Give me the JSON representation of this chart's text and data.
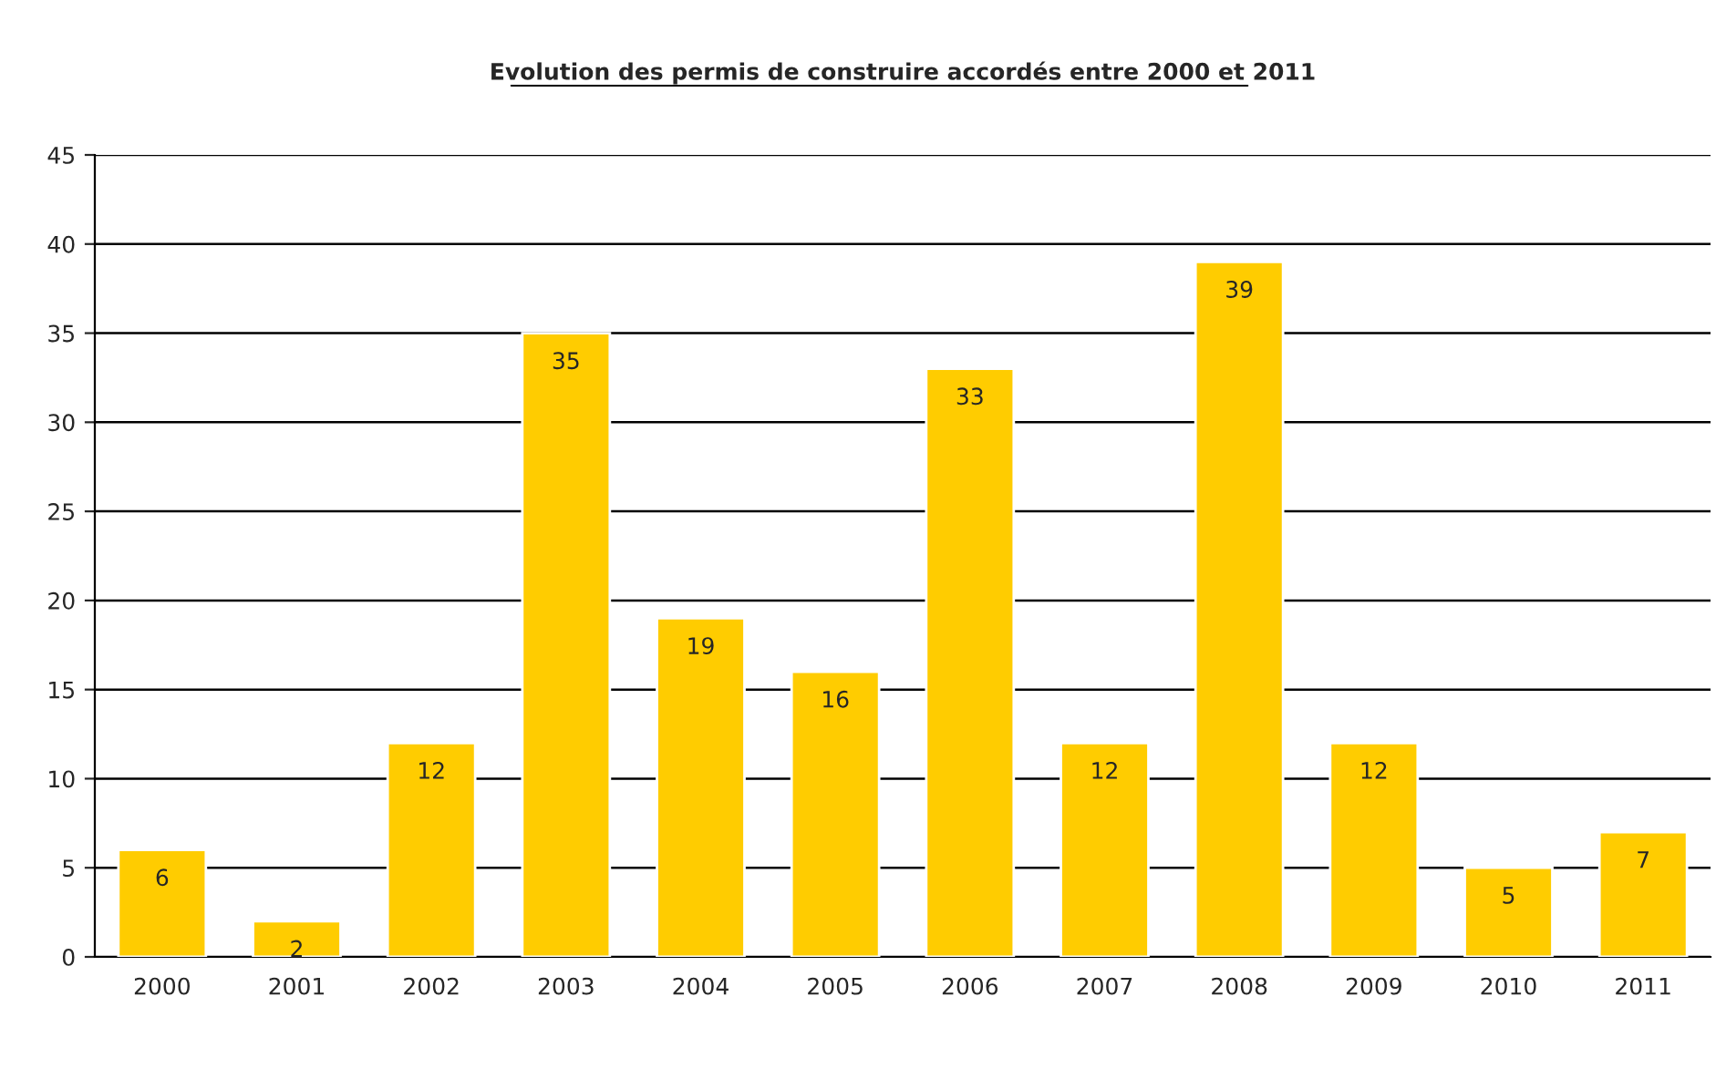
{
  "chart_data": {
    "type": "bar",
    "title": "Evolution des permis de construire accordés entre 2000 et 2011",
    "categories": [
      "2000",
      "2001",
      "2002",
      "2003",
      "2004",
      "2005",
      "2006",
      "2007",
      "2008",
      "2009",
      "2010",
      "2011"
    ],
    "values": [
      6,
      2,
      12,
      35,
      19,
      16,
      33,
      12,
      39,
      12,
      5,
      7
    ],
    "color": "#ffcc00",
    "ylim": [
      0,
      45
    ],
    "yticks": [
      0,
      5,
      10,
      15,
      20,
      25,
      30,
      35,
      40,
      45
    ],
    "grid": "y",
    "data_labels": true,
    "legend": false
  }
}
